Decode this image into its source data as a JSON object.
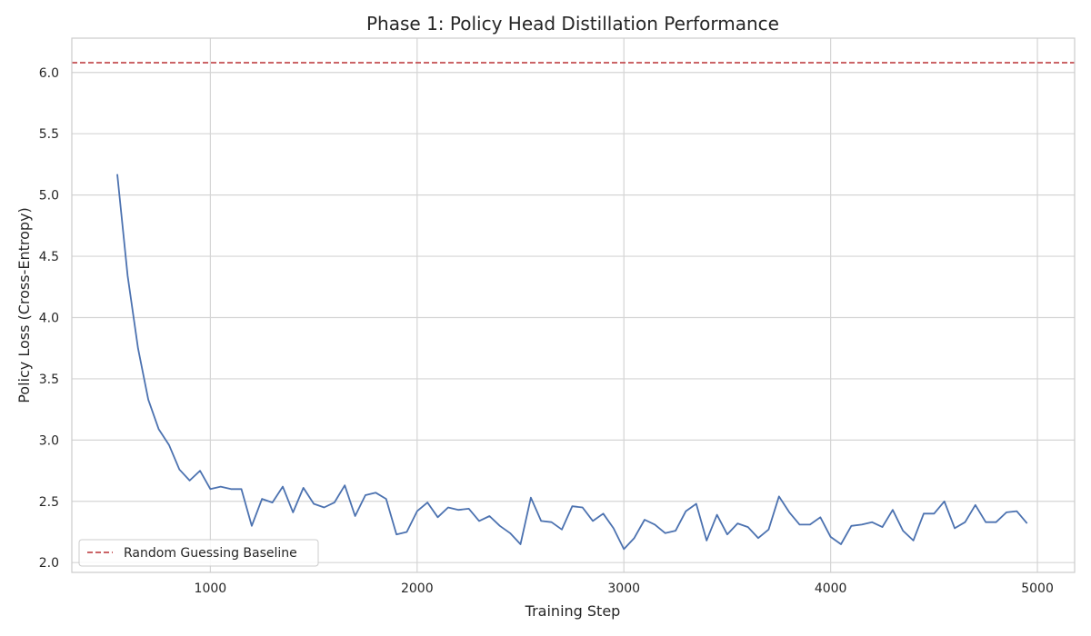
{
  "chart_data": {
    "type": "line",
    "title": "Phase 1: Policy Head Distillation Performance",
    "xlabel": "Training Step",
    "ylabel": "Policy Loss (Cross-Entropy)",
    "xlim": [
      330,
      5180
    ],
    "ylim": [
      1.92,
      6.28
    ],
    "xticks": [
      1000,
      2000,
      3000,
      4000,
      5000
    ],
    "xtick_labels": [
      "1000",
      "2000",
      "3000",
      "4000",
      "5000"
    ],
    "yticks": [
      2.0,
      2.5,
      3.0,
      3.5,
      4.0,
      4.5,
      5.0,
      5.5,
      6.0
    ],
    "ytick_labels": [
      "2.0",
      "2.5",
      "3.0",
      "3.5",
      "4.0",
      "4.5",
      "5.0",
      "5.5",
      "6.0"
    ],
    "grid": true,
    "legend_position": "lower-left",
    "series": [
      {
        "color": "#4c72b0",
        "x": [
          550,
          600,
          650,
          700,
          750,
          800,
          850,
          900,
          950,
          1000,
          1050,
          1100,
          1150,
          1200,
          1250,
          1300,
          1350,
          1400,
          1450,
          1500,
          1550,
          1600,
          1650,
          1700,
          1750,
          1800,
          1850,
          1900,
          1950,
          2000,
          2050,
          2100,
          2150,
          2200,
          2250,
          2300,
          2350,
          2400,
          2450,
          2500,
          2550,
          2600,
          2650,
          2700,
          2750,
          2800,
          2850,
          2900,
          2950,
          3000,
          3050,
          3100,
          3150,
          3200,
          3250,
          3300,
          3350,
          3400,
          3450,
          3500,
          3550,
          3600,
          3650,
          3700,
          3750,
          3800,
          3850,
          3900,
          3950,
          4000,
          4050,
          4100,
          4150,
          4200,
          4250,
          4300,
          4350,
          4400,
          4450,
          4500,
          4550,
          4600,
          4650,
          4700,
          4750,
          4800,
          4850,
          4900,
          4950
        ],
        "y": [
          5.17,
          4.34,
          3.75,
          3.33,
          3.09,
          2.96,
          2.76,
          2.67,
          2.75,
          2.6,
          2.62,
          2.6,
          2.6,
          2.3,
          2.52,
          2.49,
          2.62,
          2.41,
          2.61,
          2.48,
          2.45,
          2.49,
          2.63,
          2.38,
          2.55,
          2.57,
          2.52,
          2.23,
          2.25,
          2.42,
          2.49,
          2.37,
          2.45,
          2.43,
          2.44,
          2.34,
          2.38,
          2.3,
          2.24,
          2.15,
          2.53,
          2.34,
          2.33,
          2.27,
          2.46,
          2.45,
          2.34,
          2.4,
          2.28,
          2.11,
          2.2,
          2.35,
          2.31,
          2.24,
          2.26,
          2.42,
          2.48,
          2.18,
          2.39,
          2.23,
          2.32,
          2.29,
          2.2,
          2.27,
          2.54,
          2.41,
          2.31,
          2.31,
          2.37,
          2.21,
          2.15,
          2.3,
          2.31,
          2.33,
          2.29,
          2.43,
          2.26,
          2.18,
          2.4,
          2.4,
          2.5,
          2.28,
          2.33,
          2.47,
          2.33,
          2.33,
          2.41,
          2.42,
          2.32
        ]
      },
      {
        "name": "Random Guessing Baseline",
        "style": "dashed",
        "color": "#c44e52",
        "constant": 6.08
      }
    ]
  }
}
